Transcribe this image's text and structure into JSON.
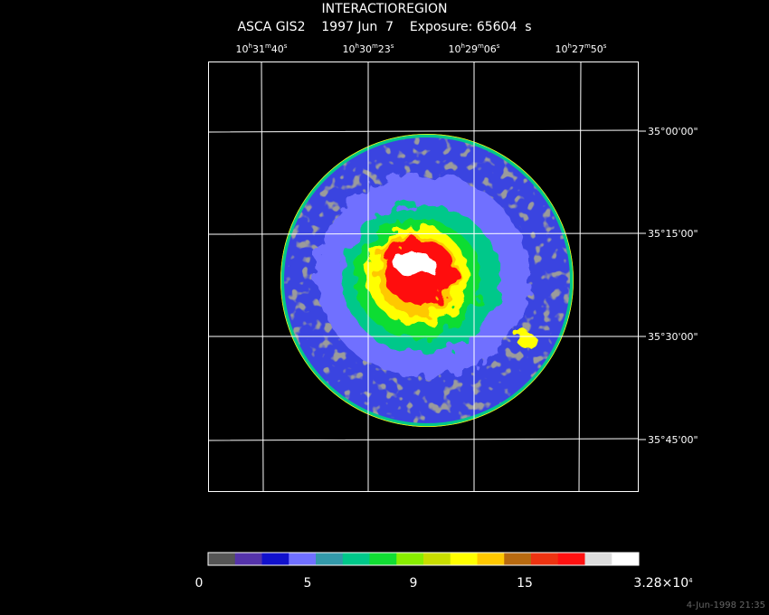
{
  "header": {
    "title": "INTERACTIOREGION",
    "subtitle": "ASCA GIS2    1997 Jun  7    Exposure: 65604  s"
  },
  "ra_labels": [
    {
      "parts": [
        "10",
        "h",
        "31",
        "m",
        "40",
        "s"
      ]
    },
    {
      "parts": [
        "10",
        "h",
        "30",
        "m",
        "23",
        "s"
      ]
    },
    {
      "parts": [
        "10",
        "h",
        "29",
        "m",
        "06",
        "s"
      ]
    },
    {
      "parts": [
        "10",
        "h",
        "27",
        "m",
        "50",
        "s"
      ]
    }
  ],
  "dec_labels": [
    "35°00'00\"",
    "35°15'00\"",
    "35°30'00\"",
    "35°45'00\""
  ],
  "colorbar": {
    "colors": [
      "#555555",
      "#5533aa",
      "#1111cc",
      "#7070ff",
      "#3399aa",
      "#00c88a",
      "#11dd33",
      "#88ee00",
      "#c8dd00",
      "#ffff00",
      "#ffc800",
      "#b86a10",
      "#ee3311",
      "#ff1111",
      "#dddddd",
      "#ffffff"
    ],
    "labels": [
      {
        "parts": [
          "0"
        ]
      },
      {
        "parts": [
          "5"
        ]
      },
      {
        "parts": [
          "9"
        ]
      },
      {
        "parts": [
          "15"
        ]
      },
      {
        "parts": [
          "3.28×10",
          "4"
        ]
      }
    ]
  },
  "footer": "4-Jun-1998 21:35"
}
